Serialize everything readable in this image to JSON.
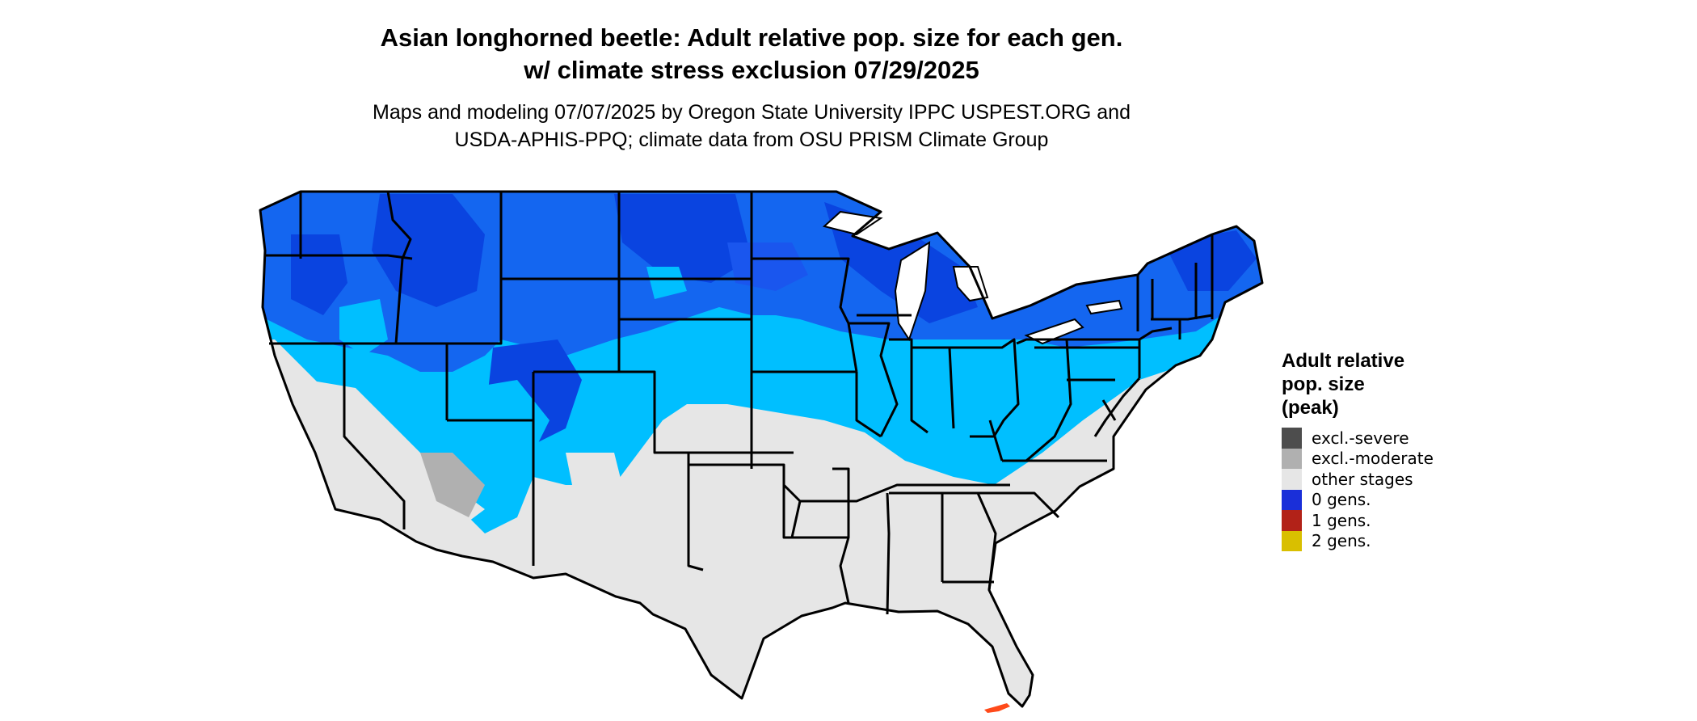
{
  "header": {
    "title_line1": "Asian longhorned beetle: Adult relative pop. size for each gen.",
    "title_line2": "w/ climate stress exclusion 07/29/2025",
    "subtitle_line1": "Maps and modeling 07/07/2025 by Oregon State University IPPC USPEST.ORG and",
    "subtitle_line2": "USDA-APHIS-PPQ; climate data from OSU PRISM Climate Group"
  },
  "legend": {
    "title_line1": "Adult relative",
    "title_line2": "pop. size",
    "title_line3": "(peak)",
    "items": [
      {
        "label": "excl.-severe",
        "color": "#4d4d4d"
      },
      {
        "label": "excl.-moderate",
        "color": "#b0b0b0"
      },
      {
        "label": "other stages",
        "color": "#e6e6e6"
      },
      {
        "label": "0 gens.",
        "color": "#1a2fd9"
      },
      {
        "label": "1 gens.",
        "color": "#b22218"
      },
      {
        "label": "2 gens.",
        "color": "#d9bf00"
      }
    ]
  },
  "map": {
    "region": "contiguous United States",
    "colors": {
      "deep_blue": "#0a44e0",
      "mid_blue": "#1466f0",
      "light_blue": "#00bfff",
      "other_stages": "#e6e6e6",
      "excl_moderate": "#b0b0b0",
      "one_gen_spot": "#ff4a1a",
      "state_border": "#000000"
    }
  }
}
